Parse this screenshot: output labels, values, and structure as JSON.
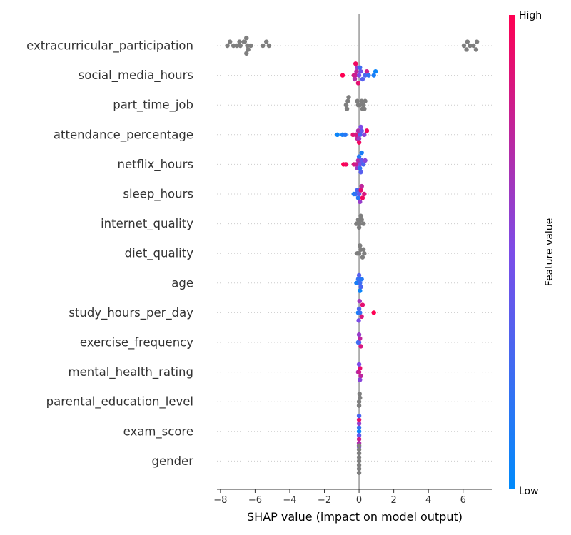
{
  "chart_data": {
    "type": "scatter",
    "subtype": "shap-beeswarm",
    "xlabel": "SHAP value (impact on model output)",
    "xlim": [
      -8.2,
      7.7
    ],
    "xticks": [
      -8,
      -6,
      -4,
      -2,
      0,
      2,
      4,
      6
    ],
    "xtick_labels": [
      "−8",
      "−6",
      "−4",
      "−2",
      "0",
      "2",
      "4",
      "6"
    ],
    "colorbar": {
      "label": "Feature value",
      "high_label": "High",
      "low_label": "Low",
      "high_color": "#ff0052",
      "low_color": "#008bfb"
    },
    "neutral_color": "#7f7f7f",
    "features": [
      {
        "name": "extracurricular_participation",
        "points": [
          {
            "x": -7.6,
            "c": null
          },
          {
            "x": -7.45,
            "c": null
          },
          {
            "x": -7.25,
            "c": null
          },
          {
            "x": -7.05,
            "c": null
          },
          {
            "x": -6.85,
            "c": null
          },
          {
            "x": -6.65,
            "c": null
          },
          {
            "x": -6.45,
            "c": null
          },
          {
            "x": -6.25,
            "c": null
          },
          {
            "x": -6.6,
            "c": null
          },
          {
            "x": -6.4,
            "c": null
          },
          {
            "x": -6.9,
            "c": null
          },
          {
            "x": -6.5,
            "c": null
          },
          {
            "x": -6.5,
            "c": null
          },
          {
            "x": -5.55,
            "c": null
          },
          {
            "x": -5.35,
            "c": null
          },
          {
            "x": -5.2,
            "c": null
          },
          {
            "x": 6.05,
            "c": null
          },
          {
            "x": 6.25,
            "c": null
          },
          {
            "x": 6.4,
            "c": null
          },
          {
            "x": 6.6,
            "c": null
          },
          {
            "x": 6.8,
            "c": null
          },
          {
            "x": 6.2,
            "c": null
          },
          {
            "x": 6.75,
            "c": null
          }
        ]
      },
      {
        "name": "social_media_hours",
        "points": [
          {
            "x": -0.95,
            "c": 1.0
          },
          {
            "x": -0.3,
            "c": 0.85
          },
          {
            "x": -0.2,
            "c": 0.8
          },
          {
            "x": -0.15,
            "c": 0.75
          },
          {
            "x": -0.25,
            "c": 0.7
          },
          {
            "x": -0.1,
            "c": 0.6
          },
          {
            "x": 0.0,
            "c": 0.5
          },
          {
            "x": 0.1,
            "c": 0.45
          },
          {
            "x": 0.2,
            "c": 0.35
          },
          {
            "x": 0.35,
            "c": 0.3
          },
          {
            "x": 0.45,
            "c": 0.8
          },
          {
            "x": 0.55,
            "c": 0.2
          },
          {
            "x": 0.85,
            "c": 0.1
          },
          {
            "x": 0.95,
            "c": 0.05
          },
          {
            "x": -0.05,
            "c": 0.9
          },
          {
            "x": 0.05,
            "c": 0.25
          },
          {
            "x": -0.2,
            "c": 0.95
          }
        ]
      },
      {
        "name": "part_time_job",
        "points": [
          {
            "x": -0.75,
            "c": null
          },
          {
            "x": -0.65,
            "c": null
          },
          {
            "x": -0.7,
            "c": null
          },
          {
            "x": -0.6,
            "c": null
          },
          {
            "x": -0.05,
            "c": null
          },
          {
            "x": 0.05,
            "c": null
          },
          {
            "x": 0.15,
            "c": null
          },
          {
            "x": 0.25,
            "c": null
          },
          {
            "x": 0.35,
            "c": null
          },
          {
            "x": 0.3,
            "c": null
          },
          {
            "x": -0.1,
            "c": null
          },
          {
            "x": 0.2,
            "c": null
          }
        ]
      },
      {
        "name": "attendance_percentage",
        "points": [
          {
            "x": -1.25,
            "c": 0.05
          },
          {
            "x": -0.95,
            "c": 0.1
          },
          {
            "x": -0.8,
            "c": 0.15
          },
          {
            "x": -0.35,
            "c": 0.9
          },
          {
            "x": -0.2,
            "c": 0.85
          },
          {
            "x": -0.05,
            "c": 0.7
          },
          {
            "x": 0.05,
            "c": 0.3
          },
          {
            "x": 0.15,
            "c": 0.4
          },
          {
            "x": 0.3,
            "c": 0.55
          },
          {
            "x": 0.45,
            "c": 0.95
          },
          {
            "x": 0.0,
            "c": 0.6
          },
          {
            "x": -0.1,
            "c": 0.75
          },
          {
            "x": 0.1,
            "c": 0.5
          },
          {
            "x": 0.0,
            "c": 0.95
          }
        ]
      },
      {
        "name": "netflix_hours",
        "points": [
          {
            "x": -0.9,
            "c": 1.0
          },
          {
            "x": -0.75,
            "c": 0.95
          },
          {
            "x": -0.3,
            "c": 0.85
          },
          {
            "x": -0.15,
            "c": 0.8
          },
          {
            "x": -0.05,
            "c": 0.7
          },
          {
            "x": 0.05,
            "c": 0.5
          },
          {
            "x": 0.15,
            "c": 0.4
          },
          {
            "x": 0.25,
            "c": 0.3
          },
          {
            "x": 0.35,
            "c": 0.55
          },
          {
            "x": 0.05,
            "c": 0.2
          },
          {
            "x": 0.0,
            "c": 0.15
          },
          {
            "x": 0.1,
            "c": 0.35
          },
          {
            "x": -0.1,
            "c": 0.6
          },
          {
            "x": 0.15,
            "c": 0.1
          }
        ]
      },
      {
        "name": "sleep_hours",
        "points": [
          {
            "x": -0.3,
            "c": 0.1
          },
          {
            "x": -0.2,
            "c": 0.2
          },
          {
            "x": -0.1,
            "c": 0.3
          },
          {
            "x": 0.0,
            "c": 0.4
          },
          {
            "x": 0.1,
            "c": 0.9
          },
          {
            "x": 0.2,
            "c": 0.95
          },
          {
            "x": 0.3,
            "c": 0.85
          },
          {
            "x": 0.15,
            "c": 0.75
          },
          {
            "x": -0.05,
            "c": 0.15
          },
          {
            "x": 0.05,
            "c": 0.6
          }
        ]
      },
      {
        "name": "internet_quality",
        "points": [
          {
            "x": -0.15,
            "c": null
          },
          {
            "x": -0.05,
            "c": null
          },
          {
            "x": 0.05,
            "c": null
          },
          {
            "x": 0.15,
            "c": null
          },
          {
            "x": 0.25,
            "c": null
          },
          {
            "x": 0.0,
            "c": null
          },
          {
            "x": 0.1,
            "c": null
          }
        ]
      },
      {
        "name": "diet_quality",
        "points": [
          {
            "x": -0.1,
            "c": null
          },
          {
            "x": 0.0,
            "c": null
          },
          {
            "x": 0.1,
            "c": null
          },
          {
            "x": 0.2,
            "c": null
          },
          {
            "x": 0.3,
            "c": null
          },
          {
            "x": 0.25,
            "c": null
          },
          {
            "x": 0.05,
            "c": null
          }
        ]
      },
      {
        "name": "age",
        "points": [
          {
            "x": -0.15,
            "c": 0.1
          },
          {
            "x": -0.05,
            "c": 0.2
          },
          {
            "x": 0.05,
            "c": 0.25
          },
          {
            "x": 0.15,
            "c": 0.15
          },
          {
            "x": 0.1,
            "c": 0.3
          },
          {
            "x": 0.0,
            "c": 0.35
          },
          {
            "x": 0.05,
            "c": 0.05
          }
        ]
      },
      {
        "name": "study_hours_per_day",
        "points": [
          {
            "x": -0.05,
            "c": 0.1
          },
          {
            "x": 0.05,
            "c": 0.2
          },
          {
            "x": 0.0,
            "c": 0.3
          },
          {
            "x": 0.15,
            "c": 0.85
          },
          {
            "x": 0.2,
            "c": 0.9
          },
          {
            "x": 0.85,
            "c": 1.0
          },
          {
            "x": -0.02,
            "c": 0.5
          },
          {
            "x": 0.03,
            "c": 0.65
          }
        ]
      },
      {
        "name": "exercise_frequency",
        "points": [
          {
            "x": -0.05,
            "c": 0.2
          },
          {
            "x": 0.0,
            "c": 0.3
          },
          {
            "x": 0.05,
            "c": 0.75
          },
          {
            "x": 0.1,
            "c": 0.85
          },
          {
            "x": 0.0,
            "c": 0.6
          }
        ]
      },
      {
        "name": "mental_health_rating",
        "points": [
          {
            "x": -0.05,
            "c": 0.7
          },
          {
            "x": 0.0,
            "c": 0.8
          },
          {
            "x": 0.05,
            "c": 0.9
          },
          {
            "x": 0.1,
            "c": 0.75
          },
          {
            "x": 0.0,
            "c": 0.5
          },
          {
            "x": 0.05,
            "c": 0.55
          }
        ]
      },
      {
        "name": "parental_education_level",
        "points": [
          {
            "x": 0.0,
            "c": null
          },
          {
            "x": 0.05,
            "c": null
          },
          {
            "x": 0.0,
            "c": null
          },
          {
            "x": 0.03,
            "c": null
          }
        ]
      },
      {
        "name": "exam_score",
        "points": [
          {
            "x": 0.0,
            "c": 0.05
          },
          {
            "x": 0.0,
            "c": 0.2
          },
          {
            "x": 0.0,
            "c": 0.4
          },
          {
            "x": 0.0,
            "c": 0.6
          },
          {
            "x": 0.0,
            "c": 0.8
          },
          {
            "x": 0.0,
            "c": 0.9
          },
          {
            "x": 0.0,
            "c": 0.7
          },
          {
            "x": 0.0,
            "c": 0.3
          },
          {
            "x": 0.0,
            "c": 0.5
          }
        ]
      },
      {
        "name": "gender",
        "points": [
          {
            "x": 0.0,
            "c": null
          },
          {
            "x": 0.0,
            "c": null
          },
          {
            "x": 0.0,
            "c": null
          },
          {
            "x": 0.0,
            "c": null
          },
          {
            "x": 0.0,
            "c": null
          },
          {
            "x": 0.0,
            "c": null
          },
          {
            "x": 0.0,
            "c": null
          },
          {
            "x": 0.0,
            "c": null
          }
        ]
      }
    ]
  }
}
